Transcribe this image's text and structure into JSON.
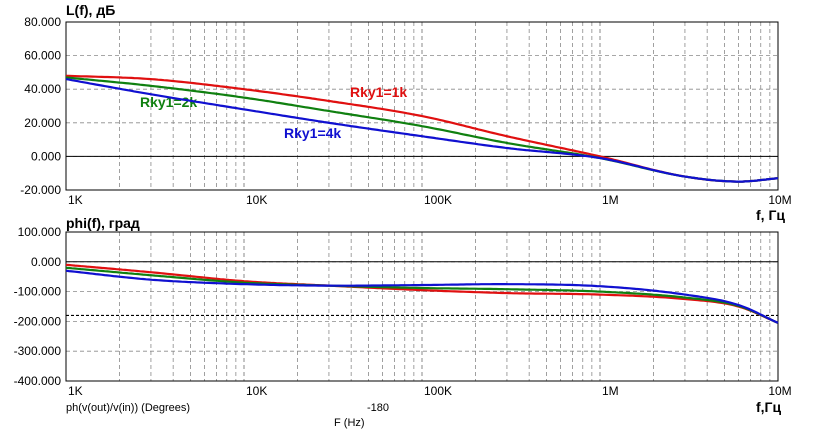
{
  "chart_data": [
    {
      "type": "line",
      "title": "L(f), дБ",
      "xlabel": "f, Гц",
      "xscale": "log",
      "xlim": [
        1000,
        10000000
      ],
      "ylim": [
        -20,
        80
      ],
      "xticks": [
        "1K",
        "10K",
        "100K",
        "1M",
        "10M"
      ],
      "yticks": [
        "80.000",
        "60.000",
        "40.000",
        "20.000",
        "0.000",
        "-20.000"
      ],
      "series": [
        {
          "name": "Rky1=1k",
          "color": "#e01010",
          "x": [
            1000,
            3000,
            10000,
            30000,
            100000,
            300000,
            1000000,
            3000000,
            6000000,
            10000000
          ],
          "values": [
            48,
            46,
            40,
            33,
            24,
            12,
            0,
            -12,
            -15,
            -13
          ]
        },
        {
          "name": "Rky1=2k",
          "color": "#108010",
          "x": [
            1000,
            3000,
            10000,
            30000,
            100000,
            300000,
            1000000,
            3000000,
            6000000,
            10000000
          ],
          "values": [
            47,
            42,
            35,
            27,
            18,
            8,
            -1,
            -12,
            -15,
            -13
          ]
        },
        {
          "name": "Rky1=4k",
          "color": "#1010d0",
          "x": [
            1000,
            3000,
            10000,
            30000,
            100000,
            300000,
            1000000,
            3000000,
            6000000,
            10000000
          ],
          "values": [
            46,
            37,
            28,
            20,
            12,
            5,
            -1,
            -12,
            -15,
            -13
          ]
        }
      ],
      "annotations": [
        "Rky1=1k",
        "Rky1=2k",
        "Rky1=4k"
      ]
    },
    {
      "type": "line",
      "title": "phi(f), град",
      "xlabel": "f,Гц",
      "xscale": "log",
      "xlim": [
        1000,
        10000000
      ],
      "ylim": [
        -400,
        100
      ],
      "xticks": [
        "1K",
        "10K",
        "100K",
        "1M",
        "10M"
      ],
      "yticks": [
        "100.000",
        "0.000",
        "-100.000",
        "-200.000",
        "-300.000",
        "-400.000"
      ],
      "reference_line": {
        "value": -180,
        "label": "-180"
      },
      "series": [
        {
          "name": "Rky1=1k",
          "color": "#e01010",
          "x": [
            1000,
            3000,
            10000,
            30000,
            100000,
            300000,
            1000000,
            3000000,
            6000000,
            10000000
          ],
          "values": [
            -10,
            -35,
            -65,
            -80,
            -95,
            -105,
            -110,
            -125,
            -150,
            -205
          ]
        },
        {
          "name": "Rky1=2k",
          "color": "#108010",
          "x": [
            1000,
            3000,
            10000,
            30000,
            100000,
            300000,
            1000000,
            3000000,
            6000000,
            10000000
          ],
          "values": [
            -20,
            -45,
            -70,
            -80,
            -88,
            -92,
            -100,
            -120,
            -148,
            -205
          ]
        },
        {
          "name": "Rky1=4k",
          "color": "#1010d0",
          "x": [
            1000,
            3000,
            10000,
            30000,
            100000,
            300000,
            1000000,
            3000000,
            6000000,
            10000000
          ],
          "values": [
            -30,
            -60,
            -75,
            -80,
            -78,
            -75,
            -82,
            -110,
            -145,
            -205
          ]
        }
      ],
      "trace_label": "ph(v(out)/v(in)) (Degrees)",
      "x_axis_caption": "F (Hz)"
    }
  ]
}
